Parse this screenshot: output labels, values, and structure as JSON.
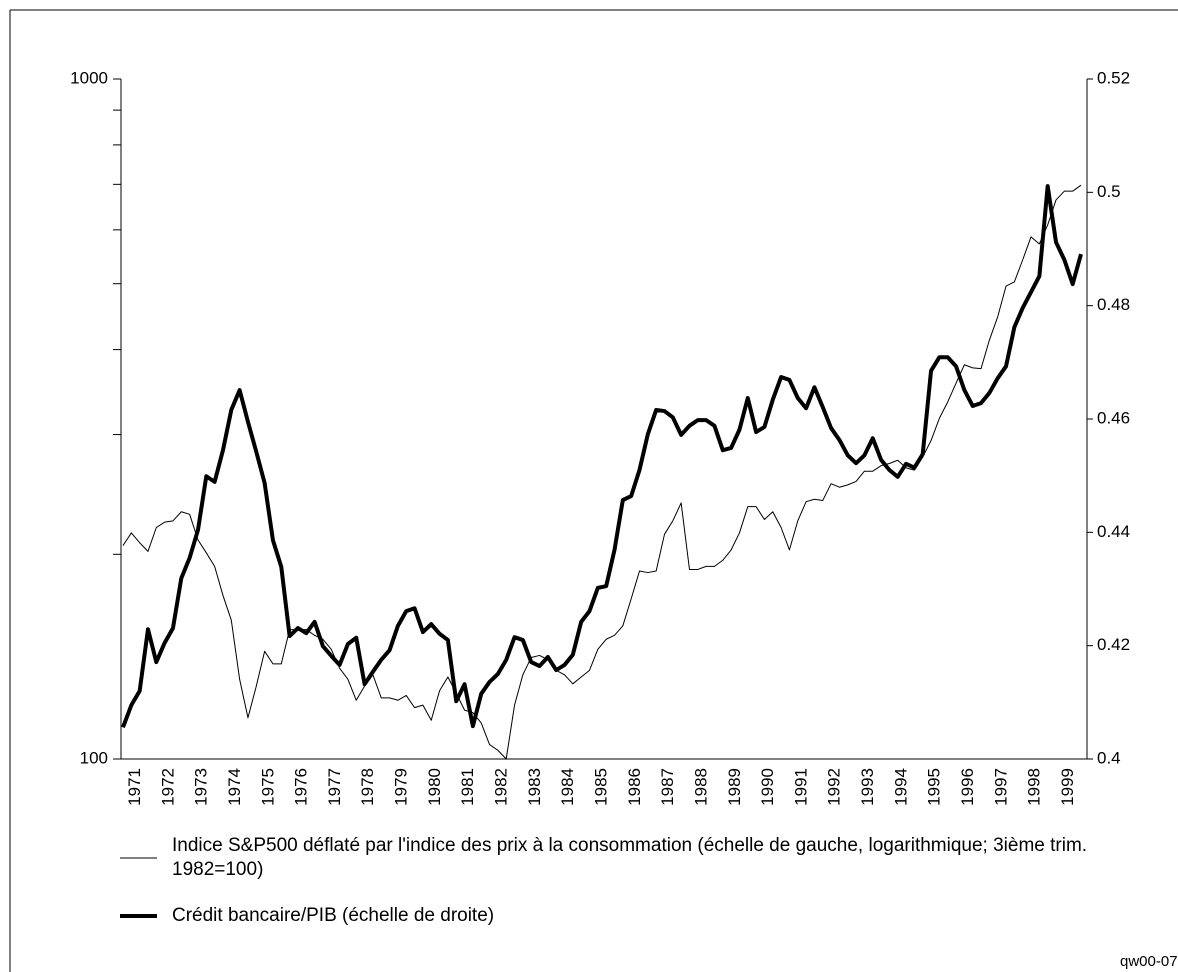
{
  "chart_data": {
    "type": "line",
    "categories": [
      null,
      "1971",
      null,
      null,
      null,
      "1972",
      null,
      null,
      null,
      "1973",
      null,
      null,
      null,
      "1974",
      null,
      null,
      null,
      "1975",
      null,
      null,
      null,
      "1976",
      null,
      null,
      null,
      "1977",
      null,
      null,
      null,
      "1978",
      null,
      null,
      null,
      "1979",
      null,
      null,
      null,
      "1980",
      null,
      null,
      null,
      "1981",
      null,
      null,
      null,
      "1982",
      null,
      null,
      null,
      "1983",
      null,
      null,
      null,
      "1984",
      null,
      null,
      null,
      "1985",
      null,
      null,
      null,
      "1986",
      null,
      null,
      null,
      "1987",
      null,
      null,
      null,
      "1988",
      null,
      null,
      null,
      "1989",
      null,
      null,
      null,
      "1990",
      null,
      null,
      null,
      "1991",
      null,
      null,
      null,
      "1992",
      null,
      null,
      null,
      "1993",
      null,
      null,
      null,
      "1994",
      null,
      null,
      null,
      "1995",
      null,
      null,
      null,
      "1996",
      null,
      null,
      null,
      "1997",
      null,
      null,
      null,
      "1998",
      null,
      null,
      null,
      "1999",
      null,
      null
    ],
    "series": [
      {
        "name": "Indice S&P500 déflaté par l'indice des prix à la consommation (échelle de gauche, logarithmique; 3ième trim. 1982=100)",
        "color": "#000000",
        "line_width": 1,
        "values": [
          206,
          215,
          208,
          202,
          219,
          223,
          224,
          231,
          229,
          210,
          201,
          192,
          174,
          160,
          131,
          115,
          128,
          144,
          138,
          138,
          155,
          155,
          155,
          152,
          150,
          145,
          136,
          131,
          122,
          128,
          133,
          123,
          123,
          122,
          124,
          119,
          120,
          114,
          126,
          132,
          125,
          118,
          117,
          113,
          105,
          103,
          100,
          120,
          133,
          141,
          142,
          140,
          135,
          133,
          129,
          132,
          135,
          145,
          150,
          152,
          157,
          172,
          189,
          188,
          189,
          214,
          224,
          238,
          190,
          190,
          192,
          192,
          196,
          203,
          215,
          235,
          235,
          225,
          231,
          219,
          203,
          224,
          239,
          241,
          240,
          254,
          251,
          253,
          256,
          265,
          265,
          270,
          272,
          275,
          268,
          266,
          278,
          294,
          317,
          335,
          357,
          380,
          376,
          375,
          413,
          447,
          496,
          503,
          542,
          586,
          572,
          610,
          664,
          684,
          684,
          698
        ]
      },
      {
        "name": "Crédit bancaire/PIB (échelle de droite)",
        "color": "#000000",
        "line_width": 4,
        "axis": "y2",
        "values": [
          0.4056,
          0.4095,
          0.412,
          0.4229,
          0.4171,
          0.4205,
          0.4231,
          0.4319,
          0.4355,
          0.4404,
          0.4499,
          0.4489,
          0.4545,
          0.4616,
          0.4651,
          0.4595,
          0.4542,
          0.4487,
          0.4386,
          0.4339,
          0.4217,
          0.4231,
          0.4222,
          0.4242,
          0.4199,
          0.4182,
          0.4166,
          0.4203,
          0.4214,
          0.4132,
          0.4154,
          0.4175,
          0.4192,
          0.4235,
          0.4261,
          0.4266,
          0.4224,
          0.4238,
          0.4221,
          0.421,
          0.4102,
          0.4132,
          0.4058,
          0.4115,
          0.4136,
          0.415,
          0.4175,
          0.4215,
          0.421,
          0.4171,
          0.4164,
          0.418,
          0.4157,
          0.4166,
          0.4184,
          0.4242,
          0.4261,
          0.4302,
          0.4305,
          0.4369,
          0.4457,
          0.4464,
          0.451,
          0.4573,
          0.4616,
          0.4614,
          0.4603,
          0.4572,
          0.4588,
          0.4598,
          0.4598,
          0.4588,
          0.4545,
          0.4549,
          0.4581,
          0.4637,
          0.4577,
          0.4586,
          0.4634,
          0.4674,
          0.4669,
          0.4637,
          0.4619,
          0.4656,
          0.4621,
          0.4584,
          0.4563,
          0.4536,
          0.4522,
          0.4536,
          0.4566,
          0.4528,
          0.451,
          0.4498,
          0.4521,
          0.4514,
          0.4538,
          0.4685,
          0.4709,
          0.4709,
          0.4693,
          0.4651,
          0.4623,
          0.4628,
          0.4646,
          0.4672,
          0.4693,
          0.4762,
          0.4796,
          0.4824,
          0.4852,
          0.5011,
          0.4912,
          0.4881,
          0.4838,
          0.4891
        ]
      }
    ],
    "yscale": "log",
    "ylim": [
      100,
      1000
    ],
    "yticks": [
      100,
      1000
    ],
    "yminor_ticks": [
      200,
      300,
      400,
      500,
      600,
      700,
      800,
      900
    ],
    "y2lim": [
      0.4,
      0.52
    ],
    "y2ticks": [
      0.4,
      0.42,
      0.44,
      0.46,
      0.48,
      0.5,
      0.52
    ],
    "note": "qw00-07"
  }
}
